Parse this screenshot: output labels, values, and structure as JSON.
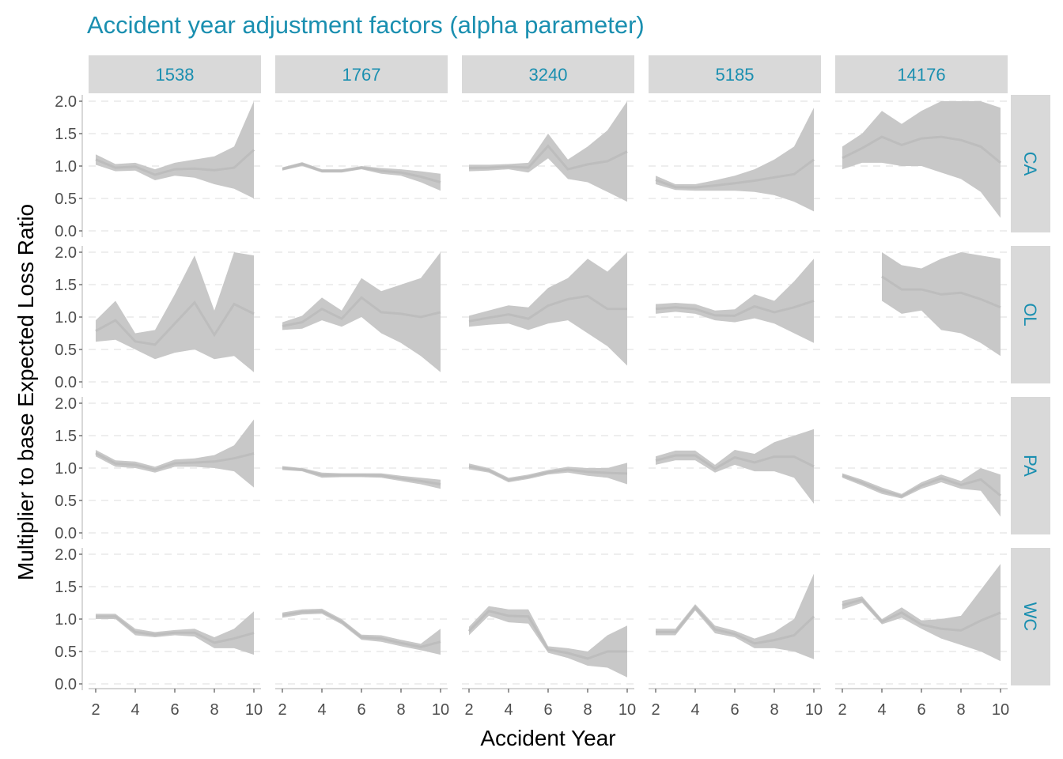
{
  "chart_data": {
    "type": "line",
    "title": "Accident year adjustment factors (alpha parameter)",
    "xlabel": "Accident Year",
    "ylabel": "Multiplier to base Expected Loss Ratio",
    "xlim": [
      2,
      10
    ],
    "ylim": [
      0,
      2.0
    ],
    "x_ticks": [
      2,
      4,
      6,
      8,
      10
    ],
    "y_ticks": [
      0.0,
      0.5,
      1.0,
      1.5,
      2.0
    ],
    "y_tick_labels": [
      "0.0",
      "0.5",
      "1.0",
      "1.5",
      "2.0"
    ],
    "grid": "horizontal dashed",
    "colors": {
      "strip_text": "#1a8fb0",
      "band": "#c8c8c8",
      "strip_bg": "#d9d9d9"
    },
    "columns": [
      "1538",
      "1767",
      "3240",
      "5185",
      "14176"
    ],
    "rows": [
      "CA",
      "OL",
      "PA",
      "WC"
    ],
    "x": [
      2,
      3,
      4,
      5,
      6,
      7,
      8,
      9,
      10
    ],
    "panels": [
      {
        "row": "CA",
        "col": "1538",
        "lo": [
          1.02,
          0.92,
          0.93,
          0.78,
          0.85,
          0.82,
          0.72,
          0.65,
          0.5
        ],
        "hi": [
          1.18,
          1.03,
          1.05,
          0.95,
          1.05,
          1.1,
          1.15,
          1.3,
          2.0
        ]
      },
      {
        "row": "CA",
        "col": "1767",
        "lo": [
          0.93,
          1.0,
          0.9,
          0.9,
          0.95,
          0.88,
          0.85,
          0.75,
          0.62
        ],
        "hi": [
          0.98,
          1.06,
          0.95,
          0.95,
          1.0,
          0.97,
          0.95,
          0.92,
          0.88
        ]
      },
      {
        "row": "CA",
        "col": "3240",
        "lo": [
          0.92,
          0.93,
          0.95,
          0.9,
          1.12,
          0.8,
          0.75,
          0.6,
          0.45
        ],
        "hi": [
          1.02,
          1.02,
          1.03,
          1.05,
          1.5,
          1.1,
          1.3,
          1.55,
          2.0
        ]
      },
      {
        "row": "CA",
        "col": "5185",
        "lo": [
          0.72,
          0.63,
          0.62,
          0.62,
          0.62,
          0.6,
          0.55,
          0.45,
          0.3
        ],
        "hi": [
          0.85,
          0.72,
          0.72,
          0.78,
          0.85,
          0.95,
          1.1,
          1.3,
          1.9
        ]
      },
      {
        "row": "CA",
        "col": "14176",
        "lo": [
          0.95,
          1.05,
          1.05,
          1.0,
          1.0,
          0.9,
          0.8,
          0.6,
          0.2
        ],
        "hi": [
          1.3,
          1.5,
          1.85,
          1.65,
          1.85,
          2.0,
          2.0,
          2.0,
          1.9
        ]
      },
      {
        "row": "OL",
        "col": "1538",
        "lo": [
          0.62,
          0.65,
          0.5,
          0.35,
          0.45,
          0.5,
          0.35,
          0.4,
          0.15
        ],
        "hi": [
          0.95,
          1.25,
          0.75,
          0.8,
          1.35,
          1.95,
          1.1,
          2.0,
          1.95
        ]
      },
      {
        "row": "OL",
        "col": "1767",
        "lo": [
          0.8,
          0.82,
          0.95,
          0.85,
          1.0,
          0.75,
          0.6,
          0.4,
          0.15
        ],
        "hi": [
          0.92,
          1.02,
          1.3,
          1.1,
          1.6,
          1.4,
          1.5,
          1.6,
          2.0
        ]
      },
      {
        "row": "OL",
        "col": "3240",
        "lo": [
          0.85,
          0.88,
          0.9,
          0.8,
          0.9,
          0.95,
          0.75,
          0.55,
          0.25
        ],
        "hi": [
          1.02,
          1.1,
          1.18,
          1.15,
          1.45,
          1.6,
          1.9,
          1.7,
          2.0
        ]
      },
      {
        "row": "OL",
        "col": "5185",
        "lo": [
          1.05,
          1.08,
          1.05,
          0.95,
          0.92,
          0.98,
          0.9,
          0.75,
          0.6
        ],
        "hi": [
          1.2,
          1.22,
          1.2,
          1.1,
          1.12,
          1.35,
          1.25,
          1.55,
          1.9
        ]
      },
      {
        "row": "OL",
        "col": "14176",
        "lo": [
          null,
          null,
          1.25,
          1.05,
          1.1,
          0.8,
          0.75,
          0.6,
          0.4
        ],
        "hi": [
          null,
          null,
          2.0,
          1.8,
          1.75,
          1.9,
          2.0,
          1.95,
          1.9
        ]
      },
      {
        "row": "PA",
        "col": "1538",
        "lo": [
          1.18,
          1.02,
          1.0,
          0.93,
          1.02,
          1.02,
          1.0,
          0.95,
          0.7
        ],
        "hi": [
          1.28,
          1.12,
          1.1,
          1.02,
          1.13,
          1.15,
          1.2,
          1.35,
          1.75
        ]
      },
      {
        "row": "PA",
        "col": "1767",
        "lo": [
          0.97,
          0.95,
          0.85,
          0.86,
          0.86,
          0.85,
          0.8,
          0.75,
          0.68
        ],
        "hi": [
          1.03,
          1.0,
          0.93,
          0.92,
          0.92,
          0.92,
          0.88,
          0.85,
          0.82
        ]
      },
      {
        "row": "PA",
        "col": "3240",
        "lo": [
          0.98,
          0.93,
          0.78,
          0.83,
          0.9,
          0.93,
          0.88,
          0.85,
          0.75
        ],
        "hi": [
          1.07,
          1.0,
          0.85,
          0.9,
          0.97,
          1.02,
          1.0,
          1.0,
          1.08
        ]
      },
      {
        "row": "PA",
        "col": "5185",
        "lo": [
          1.05,
          1.12,
          1.12,
          0.93,
          1.05,
          0.95,
          0.95,
          0.85,
          0.45
        ],
        "hi": [
          1.18,
          1.27,
          1.27,
          1.05,
          1.28,
          1.22,
          1.4,
          1.5,
          1.6
        ]
      },
      {
        "row": "PA",
        "col": "14176",
        "lo": [
          0.85,
          0.73,
          0.6,
          0.53,
          0.68,
          0.78,
          0.68,
          0.65,
          0.25
        ],
        "hi": [
          0.92,
          0.82,
          0.7,
          0.6,
          0.78,
          0.9,
          0.8,
          1.0,
          0.9
        ]
      },
      {
        "row": "WC",
        "col": "1538",
        "lo": [
          1.0,
          1.0,
          0.75,
          0.72,
          0.75,
          0.73,
          0.55,
          0.55,
          0.45
        ],
        "hi": [
          1.08,
          1.08,
          0.85,
          0.8,
          0.83,
          0.85,
          0.72,
          0.85,
          1.12
        ]
      },
      {
        "row": "WC",
        "col": "1767",
        "lo": [
          1.02,
          1.07,
          1.08,
          0.92,
          0.68,
          0.65,
          0.58,
          0.52,
          0.45
        ],
        "hi": [
          1.1,
          1.15,
          1.16,
          1.0,
          0.76,
          0.75,
          0.68,
          0.62,
          0.85
        ]
      },
      {
        "row": "WC",
        "col": "3240",
        "lo": [
          0.75,
          1.05,
          0.95,
          0.93,
          0.48,
          0.4,
          0.28,
          0.25,
          0.1
        ],
        "hi": [
          0.88,
          1.2,
          1.15,
          1.15,
          0.58,
          0.55,
          0.5,
          0.75,
          0.9
        ]
      },
      {
        "row": "WC",
        "col": "5185",
        "lo": [
          0.75,
          0.75,
          1.13,
          0.78,
          0.72,
          0.55,
          0.55,
          0.5,
          0.38
        ],
        "hi": [
          0.85,
          0.85,
          1.23,
          0.9,
          0.82,
          0.7,
          0.8,
          1.0,
          1.7
        ]
      },
      {
        "row": "WC",
        "col": "14176",
        "lo": [
          1.15,
          1.25,
          0.92,
          1.02,
          0.85,
          0.7,
          0.6,
          0.5,
          0.35
        ],
        "hi": [
          1.28,
          1.35,
          1.0,
          1.18,
          0.98,
          1.0,
          1.05,
          1.45,
          1.85
        ]
      }
    ]
  }
}
